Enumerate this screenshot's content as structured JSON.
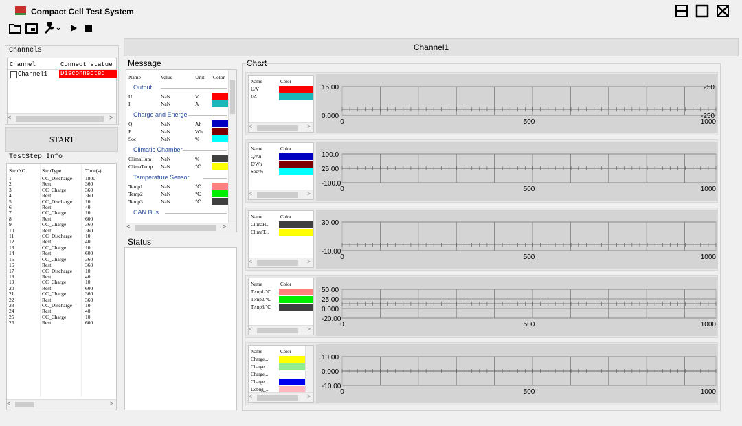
{
  "window": {
    "title": "Compact Cell Test System"
  },
  "channels_panel": {
    "title": "Channels",
    "columns": [
      "Channel",
      "Connect statue"
    ],
    "rows": [
      {
        "channel": "Channel1",
        "status": "Disconnected"
      }
    ]
  },
  "start_button": "START",
  "teststep": {
    "title": "TestStep Info",
    "columns": [
      "StepNO.",
      "StepType",
      "Time(s)"
    ],
    "rows": [
      [
        "1",
        "CC_Discharge",
        "1800"
      ],
      [
        "2",
        "Rest",
        "360"
      ],
      [
        "3",
        "CC_Charge",
        "360"
      ],
      [
        "4",
        "Rest",
        "360"
      ],
      [
        "5",
        "CC_Discharge",
        "10"
      ],
      [
        "6",
        "Rest",
        "40"
      ],
      [
        "7",
        "CC_Charge",
        "10"
      ],
      [
        "8",
        "Rest",
        "600"
      ],
      [
        "9",
        "CC_Charge",
        "360"
      ],
      [
        "10",
        "Rest",
        "360"
      ],
      [
        "11",
        "CC_Discharge",
        "10"
      ],
      [
        "12",
        "Rest",
        "40"
      ],
      [
        "13",
        "CC_Charge",
        "10"
      ],
      [
        "14",
        "Rest",
        "600"
      ],
      [
        "15",
        "CC_Charge",
        "360"
      ],
      [
        "16",
        "Rest",
        "360"
      ],
      [
        "17",
        "CC_Discharge",
        "10"
      ],
      [
        "18",
        "Rest",
        "40"
      ],
      [
        "19",
        "CC_Charge",
        "10"
      ],
      [
        "20",
        "Rest",
        "600"
      ],
      [
        "21",
        "CC_Charge",
        "360"
      ],
      [
        "22",
        "Rest",
        "360"
      ],
      [
        "23",
        "CC_Discharge",
        "10"
      ],
      [
        "24",
        "Rest",
        "40"
      ],
      [
        "25",
        "CC_Charge",
        "10"
      ],
      [
        "26",
        "Rest",
        "600"
      ]
    ]
  },
  "channel_header": "Channel1",
  "message": {
    "title": "Message",
    "columns": [
      "Name",
      "Value",
      "Unit",
      "Color"
    ],
    "groups": [
      {
        "label": "Output",
        "rows": [
          {
            "name": "U",
            "value": "NaN",
            "unit": "V",
            "color": "#ff0000"
          },
          {
            "name": "I",
            "value": "NaN",
            "unit": "A",
            "color": "#1ab8b8"
          }
        ]
      },
      {
        "label": "Charge and Energe",
        "rows": [
          {
            "name": "Q",
            "value": "NaN",
            "unit": "Ah",
            "color": "#0000c0"
          },
          {
            "name": "E",
            "value": "NaN",
            "unit": "Wh",
            "color": "#800000"
          },
          {
            "name": "Soc",
            "value": "NaN",
            "unit": "%",
            "color": "#00ffff"
          }
        ]
      },
      {
        "label": "Climatic Chamber",
        "rows": [
          {
            "name": "ClimaHum",
            "value": "NaN",
            "unit": "%",
            "color": "#404040"
          },
          {
            "name": "ClimaTemp",
            "value": "NaN",
            "unit": "℃",
            "color": "#ffff00"
          }
        ]
      },
      {
        "label": "Temperature Sensor",
        "rows": [
          {
            "name": "Temp1",
            "value": "NaN",
            "unit": "℃",
            "color": "#ff8080"
          },
          {
            "name": "Temp2",
            "value": "NaN",
            "unit": "℃",
            "color": "#00ee00"
          },
          {
            "name": "Temp3",
            "value": "NaN",
            "unit": "℃",
            "color": "#404040"
          }
        ]
      },
      {
        "label": "CAN Bus",
        "rows": []
      }
    ]
  },
  "status": {
    "title": "Status"
  },
  "chart_area": {
    "title": "Chart"
  },
  "chart_data": [
    {
      "type": "line",
      "legend_header": [
        "Name",
        "Color"
      ],
      "series": [
        {
          "name": "U/V",
          "color": "#ff0000",
          "values": []
        },
        {
          "name": "I/A",
          "color": "#1ab8b8",
          "values": []
        }
      ],
      "xlim": [
        0,
        1000
      ],
      "xticks": [
        "0",
        "500",
        "1000"
      ],
      "yticks_left": [
        "15.00",
        "0.000"
      ],
      "yticks_right": [
        "250",
        "-250"
      ],
      "grid": true
    },
    {
      "type": "line",
      "legend_header": [
        "Name",
        "Color"
      ],
      "series": [
        {
          "name": "Q/Ah",
          "color": "#0000c0",
          "values": []
        },
        {
          "name": "E/Wh",
          "color": "#800000",
          "values": []
        },
        {
          "name": "Soc/%",
          "color": "#00ffff",
          "values": []
        }
      ],
      "xlim": [
        0,
        1000
      ],
      "xticks": [
        "0",
        "500",
        "1000"
      ],
      "yticks_left": [
        "100.0",
        "25.00",
        "-100.0"
      ],
      "grid": true
    },
    {
      "type": "line",
      "legend_header": [
        "Name",
        "Color"
      ],
      "series": [
        {
          "name": "ClimaH...",
          "color": "#404040",
          "values": []
        },
        {
          "name": "ClimaT...",
          "color": "#ffff00",
          "values": []
        }
      ],
      "xlim": [
        0,
        1000
      ],
      "xticks": [
        "0",
        "500",
        "1000"
      ],
      "yticks_left": [
        "30.00",
        "-10.00"
      ],
      "grid": true
    },
    {
      "type": "line",
      "legend_header": [
        "Name",
        "Color"
      ],
      "series": [
        {
          "name": "Temp1/℃",
          "color": "#ff8080",
          "values": []
        },
        {
          "name": "Temp2/℃",
          "color": "#00ee00",
          "values": []
        },
        {
          "name": "Temp3/℃",
          "color": "#404040",
          "values": []
        }
      ],
      "xlim": [
        0,
        1000
      ],
      "xticks": [
        "0",
        "500",
        "1000"
      ],
      "yticks_left": [
        "50.00",
        "25.00",
        "0.000",
        "-20.00"
      ],
      "grid": true
    },
    {
      "type": "line",
      "legend_header": [
        "Name",
        "Color"
      ],
      "series": [
        {
          "name": "Charge...",
          "color": "#ffff00",
          "values": []
        },
        {
          "name": "Charge...",
          "color": "#90ee90",
          "values": []
        },
        {
          "name": "Charge...",
          "color": "#ffffff",
          "values": []
        },
        {
          "name": "Charge...",
          "color": "#0000ee",
          "values": []
        },
        {
          "name": "Debug_...",
          "color": "#ffb6c1",
          "values": []
        }
      ],
      "xlim": [
        0,
        1000
      ],
      "xticks": [
        "0",
        "500",
        "1000"
      ],
      "yticks_left": [
        "10.00",
        "0.000",
        "-10.00"
      ],
      "grid": true
    }
  ]
}
